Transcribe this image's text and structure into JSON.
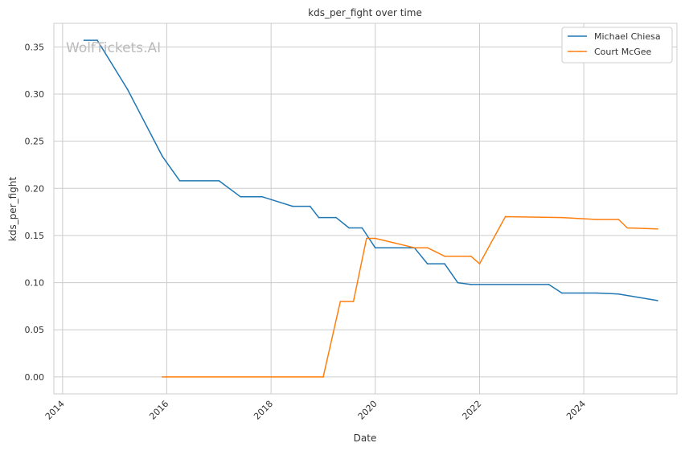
{
  "chart_data": {
    "type": "line",
    "title": "kds_per_fight over time",
    "xlabel": "Date",
    "ylabel": "kds_per_fight",
    "watermark": "WolfTickets.AI",
    "xlim": [
      "2013-11-01",
      "2025-10-15"
    ],
    "ylim": [
      -0.018,
      0.375
    ],
    "x_ticks": [
      "2014",
      "2016",
      "2018",
      "2020",
      "2022",
      "2024"
    ],
    "y_ticks": [
      "0.00",
      "0.05",
      "0.10",
      "0.15",
      "0.20",
      "0.25",
      "0.30",
      "0.35"
    ],
    "grid": true,
    "legend_position": "top-right",
    "series": [
      {
        "name": "Michael Chiesa",
        "color": "#1f77b4",
        "points": [
          [
            "2014-06-01",
            0.357
          ],
          [
            "2014-09-01",
            0.357
          ],
          [
            "2015-04-01",
            0.305
          ],
          [
            "2015-12-01",
            0.234
          ],
          [
            "2016-04-01",
            0.208
          ],
          [
            "2017-01-01",
            0.208
          ],
          [
            "2017-06-01",
            0.191
          ],
          [
            "2017-11-01",
            0.191
          ],
          [
            "2018-06-01",
            0.181
          ],
          [
            "2018-10-01",
            0.181
          ],
          [
            "2018-12-01",
            0.169
          ],
          [
            "2019-04-01",
            0.169
          ],
          [
            "2019-07-01",
            0.158
          ],
          [
            "2019-10-01",
            0.158
          ],
          [
            "2020-01-01",
            0.137
          ],
          [
            "2020-10-01",
            0.137
          ],
          [
            "2021-01-01",
            0.12
          ],
          [
            "2021-05-01",
            0.12
          ],
          [
            "2021-08-01",
            0.1
          ],
          [
            "2021-11-01",
            0.098
          ],
          [
            "2023-05-01",
            0.098
          ],
          [
            "2023-08-01",
            0.089
          ],
          [
            "2024-04-01",
            0.089
          ],
          [
            "2024-09-01",
            0.088
          ],
          [
            "2025-06-01",
            0.081
          ]
        ]
      },
      {
        "name": "Court McGee",
        "color": "#ff7f0e",
        "points": [
          [
            "2015-12-01",
            0.0
          ],
          [
            "2019-01-01",
            0.0
          ],
          [
            "2019-05-01",
            0.08
          ],
          [
            "2019-08-01",
            0.08
          ],
          [
            "2019-11-01",
            0.147
          ],
          [
            "2020-01-01",
            0.147
          ],
          [
            "2020-10-01",
            0.137
          ],
          [
            "2021-01-01",
            0.137
          ],
          [
            "2021-05-01",
            0.128
          ],
          [
            "2021-11-01",
            0.128
          ],
          [
            "2022-01-01",
            0.12
          ],
          [
            "2022-07-01",
            0.17
          ],
          [
            "2023-08-01",
            0.169
          ],
          [
            "2024-04-01",
            0.167
          ],
          [
            "2024-09-01",
            0.167
          ],
          [
            "2024-11-01",
            0.158
          ],
          [
            "2025-06-01",
            0.157
          ]
        ]
      }
    ]
  }
}
